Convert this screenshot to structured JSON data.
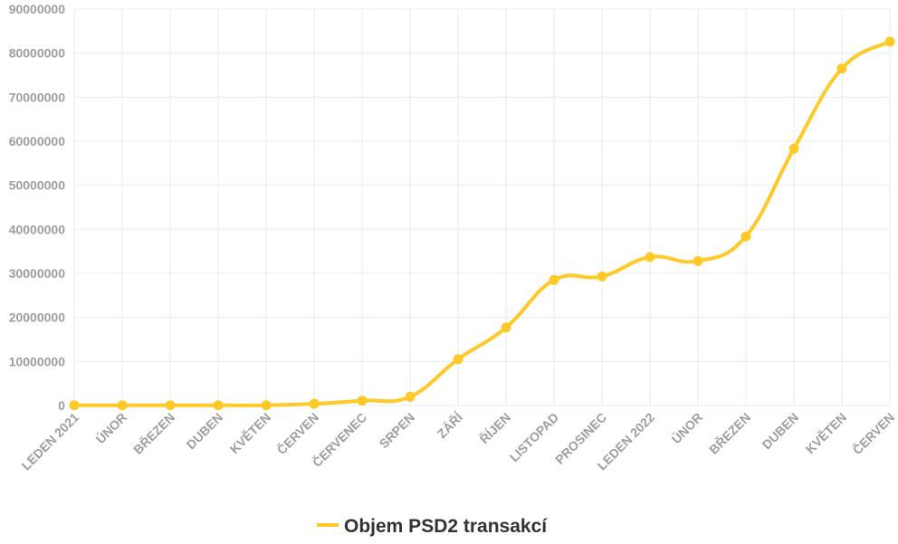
{
  "chart_data": {
    "type": "line",
    "title": "",
    "xlabel": "",
    "ylabel": "",
    "ylim": [
      0,
      90000000
    ],
    "yticks": [
      0,
      10000000,
      20000000,
      30000000,
      40000000,
      50000000,
      60000000,
      70000000,
      80000000,
      90000000
    ],
    "grid": true,
    "legend_position": "bottom",
    "categories": [
      "LEDEN 2021",
      "ÚNOR",
      "BŘEZEN",
      "DUBEN",
      "KVĚTEN",
      "ČERVEN",
      "ČERVENEC",
      "SRPEN",
      "ZÁŘÍ",
      "ŘÍJEN",
      "LISTOPAD",
      "PROSINEC",
      "LEDEN 2022",
      "ÚNOR",
      "BŘEZEN",
      "DUBEN",
      "KVĚTEN",
      "ČERVEN"
    ],
    "series": [
      {
        "name": "Objem PSD2 transakcí",
        "color": "#FFCA28",
        "values": [
          50000,
          50000,
          50000,
          50000,
          50000,
          400000,
          1100000,
          2000000,
          10500000,
          17700000,
          28500000,
          29300000,
          33700000,
          32800000,
          38400000,
          58300000,
          76500000,
          82600000
        ]
      }
    ]
  }
}
